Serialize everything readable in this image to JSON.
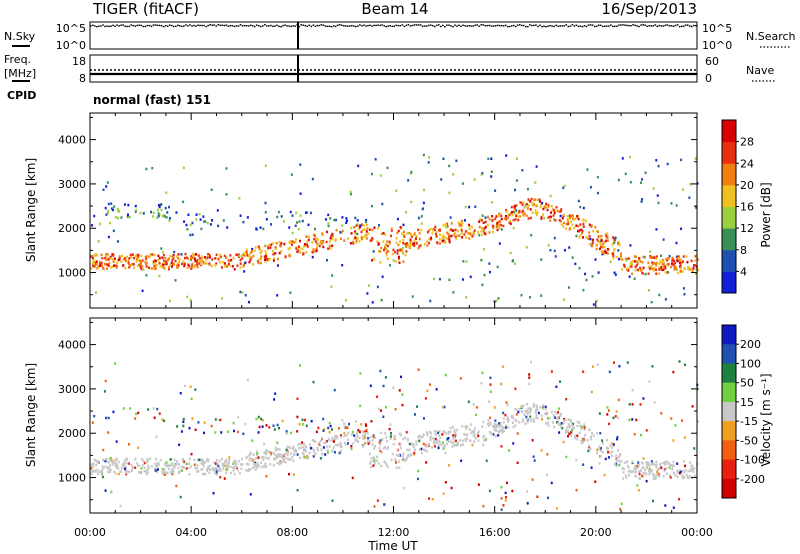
{
  "header": {
    "title": "TIGER (fitACF)",
    "beam": "Beam 14",
    "date": "16/Sep/2013"
  },
  "sky_panel": {
    "left_label": "N.Sky",
    "right_label": "N.Search",
    "left_ticks": [
      "10^5",
      "10^0"
    ],
    "right_ticks": [
      "10^5",
      "10^0"
    ]
  },
  "freq_panel": {
    "left_label_1": "Freq.",
    "left_label_2": "[MHz]",
    "right_label": "Nave",
    "left_ticks": [
      "18",
      "8"
    ],
    "right_ticks": [
      "60",
      "0"
    ]
  },
  "cpid": {
    "label": "CPID",
    "value": "normal (fast) 151"
  },
  "chart_data": [
    {
      "type": "heatmap",
      "name": "power",
      "ylabel": "Slant Range [km]",
      "xlabel": "",
      "x_ticks": [
        "00:00",
        "04:00",
        "08:00",
        "12:00",
        "16:00",
        "20:00",
        "00:00"
      ],
      "y_ticks": [
        1000,
        2000,
        3000,
        4000
      ],
      "ylim": [
        200,
        4600
      ],
      "colorbar": {
        "label": "Power [dB]",
        "ticks": [
          "4",
          "8",
          "12",
          "16",
          "20",
          "24",
          "28"
        ],
        "colors": [
          "#1020d8",
          "#1f4fb0",
          "#3a8f58",
          "#9bd040",
          "#f0c020",
          "#f08010",
          "#e83010",
          "#d80000"
        ]
      }
    },
    {
      "type": "heatmap",
      "name": "velocity",
      "ylabel": "Slant Range [km]",
      "xlabel": "Time UT",
      "x_ticks": [
        "00:00",
        "04:00",
        "08:00",
        "12:00",
        "16:00",
        "20:00",
        "00:00"
      ],
      "y_ticks": [
        1000,
        2000,
        3000,
        4000
      ],
      "ylim": [
        200,
        4600
      ],
      "colorbar": {
        "label": "Velocity [m s⁻¹]",
        "ticks": [
          "200",
          "100",
          "50",
          "15",
          "-15",
          "-50",
          "-100",
          "-200"
        ],
        "colors": [
          "#1018c0",
          "#2050b0",
          "#208040",
          "#70d040",
          "#c8c8c8",
          "#f0a020",
          "#f06010",
          "#e82010",
          "#d00000"
        ]
      }
    }
  ]
}
